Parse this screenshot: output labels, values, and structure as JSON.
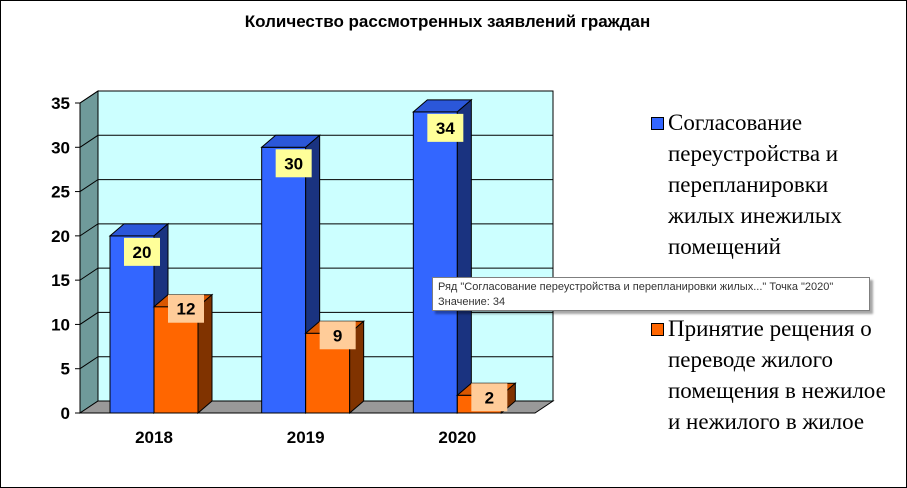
{
  "chart_data": {
    "type": "bar",
    "title": "Количество рассмотренных заявлений граждан",
    "categories": [
      "2018",
      "2019",
      "2020"
    ],
    "series": [
      {
        "name": "Согласование переустройства и перепланировки жилых инежилых помещений",
        "values": [
          20,
          30,
          34
        ],
        "color": "#3366ff"
      },
      {
        "name": "Принятие рещения о переводе жилого помещения в нежилое и нежилого в жилое",
        "values": [
          12,
          9,
          2
        ],
        "color": "#ff6600"
      }
    ],
    "ylim": [
      0,
      35
    ],
    "yticks": [
      "0",
      "5",
      "10",
      "15",
      "20",
      "25",
      "30",
      "35"
    ],
    "grid": true,
    "legend": "right",
    "wall_color": "#ccffff"
  },
  "tooltip": {
    "line1": "Ряд \"Согласование переустройства и перепланировки жилых...\" Точка \"2020\"",
    "line2": "Значение: 34"
  }
}
